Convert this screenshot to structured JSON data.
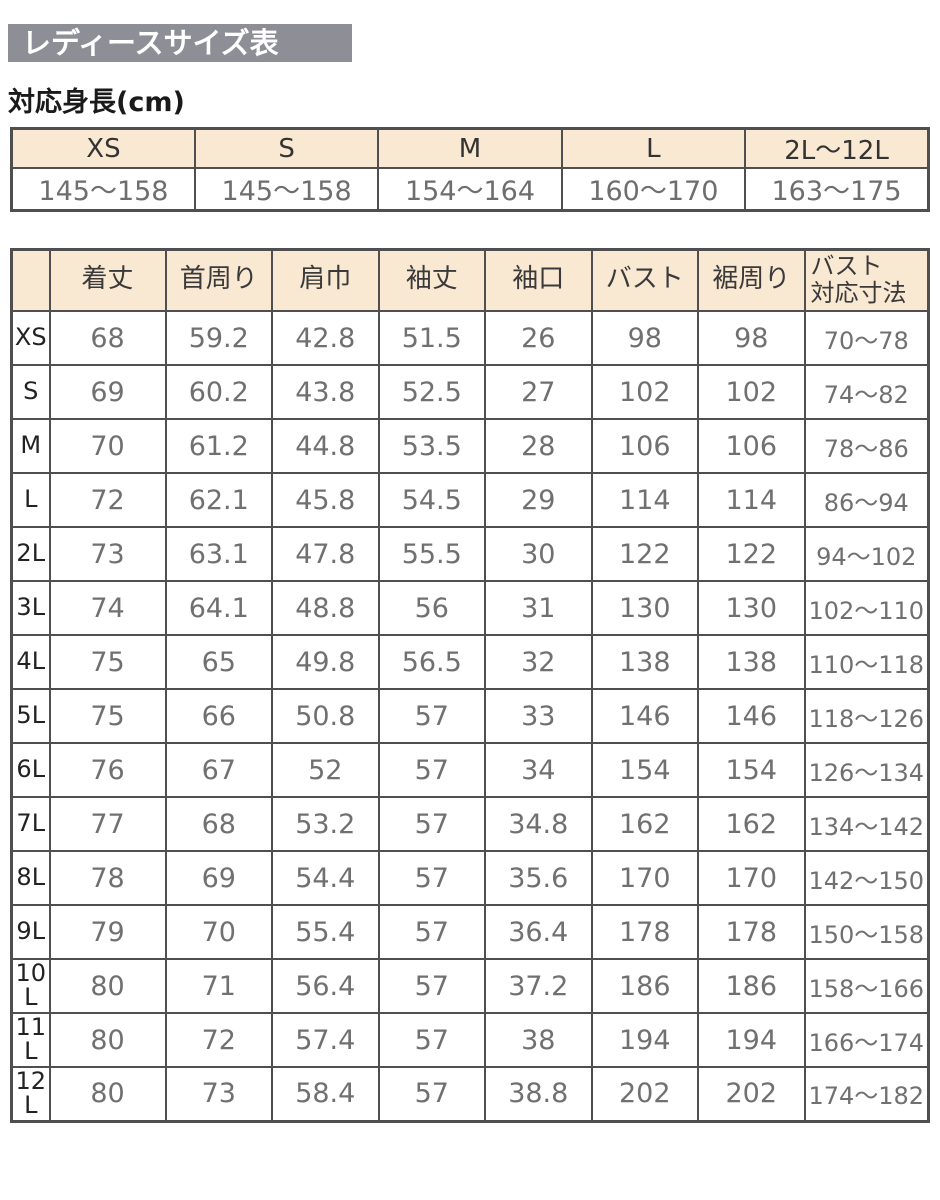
{
  "title": "レディースサイズ表",
  "colors": {
    "title_bg": "#8e8e96",
    "title_text": "#ffffff",
    "header_bg": "#f9e8d2",
    "border": "#4f4f4f",
    "value_text": "#707070",
    "label_text": "#222222"
  },
  "chart_data": [
    {
      "type": "table",
      "title": "対応身長(cm)",
      "columns": [
        "XS",
        "S",
        "M",
        "L",
        "2L〜12L"
      ],
      "rows": [
        [
          "145〜158",
          "145〜158",
          "154〜164",
          "160〜170",
          "163〜175"
        ]
      ]
    },
    {
      "type": "table",
      "title": "レディースサイズ表",
      "columns": [
        "",
        "着丈",
        "首周り",
        "肩巾",
        "袖丈",
        "袖口",
        "バスト",
        "裾周り",
        "バスト\n対応寸法"
      ],
      "rows": [
        [
          "XS",
          "68",
          "59.2",
          "42.8",
          "51.5",
          "26",
          "98",
          "98",
          "70〜78"
        ],
        [
          "S",
          "69",
          "60.2",
          "43.8",
          "52.5",
          "27",
          "102",
          "102",
          "74〜82"
        ],
        [
          "M",
          "70",
          "61.2",
          "44.8",
          "53.5",
          "28",
          "106",
          "106",
          "78〜86"
        ],
        [
          "L",
          "72",
          "62.1",
          "45.8",
          "54.5",
          "29",
          "114",
          "114",
          "86〜94"
        ],
        [
          "2L",
          "73",
          "63.1",
          "47.8",
          "55.5",
          "30",
          "122",
          "122",
          "94〜102"
        ],
        [
          "3L",
          "74",
          "64.1",
          "48.8",
          "56",
          "31",
          "130",
          "130",
          "102〜110"
        ],
        [
          "4L",
          "75",
          "65",
          "49.8",
          "56.5",
          "32",
          "138",
          "138",
          "110〜118"
        ],
        [
          "5L",
          "75",
          "66",
          "50.8",
          "57",
          "33",
          "146",
          "146",
          "118〜126"
        ],
        [
          "6L",
          "76",
          "67",
          "52",
          "57",
          "34",
          "154",
          "154",
          "126〜134"
        ],
        [
          "7L",
          "77",
          "68",
          "53.2",
          "57",
          "34.8",
          "162",
          "162",
          "134〜142"
        ],
        [
          "8L",
          "78",
          "69",
          "54.4",
          "57",
          "35.6",
          "170",
          "170",
          "142〜150"
        ],
        [
          "9L",
          "79",
          "70",
          "55.4",
          "57",
          "36.4",
          "178",
          "178",
          "150〜158"
        ],
        [
          "10L",
          "80",
          "71",
          "56.4",
          "57",
          "37.2",
          "186",
          "186",
          "158〜166"
        ],
        [
          "11L",
          "80",
          "72",
          "57.4",
          "57",
          "38",
          "194",
          "194",
          "166〜174"
        ],
        [
          "12L",
          "80",
          "73",
          "58.4",
          "57",
          "38.8",
          "202",
          "202",
          "174〜182"
        ]
      ]
    }
  ]
}
